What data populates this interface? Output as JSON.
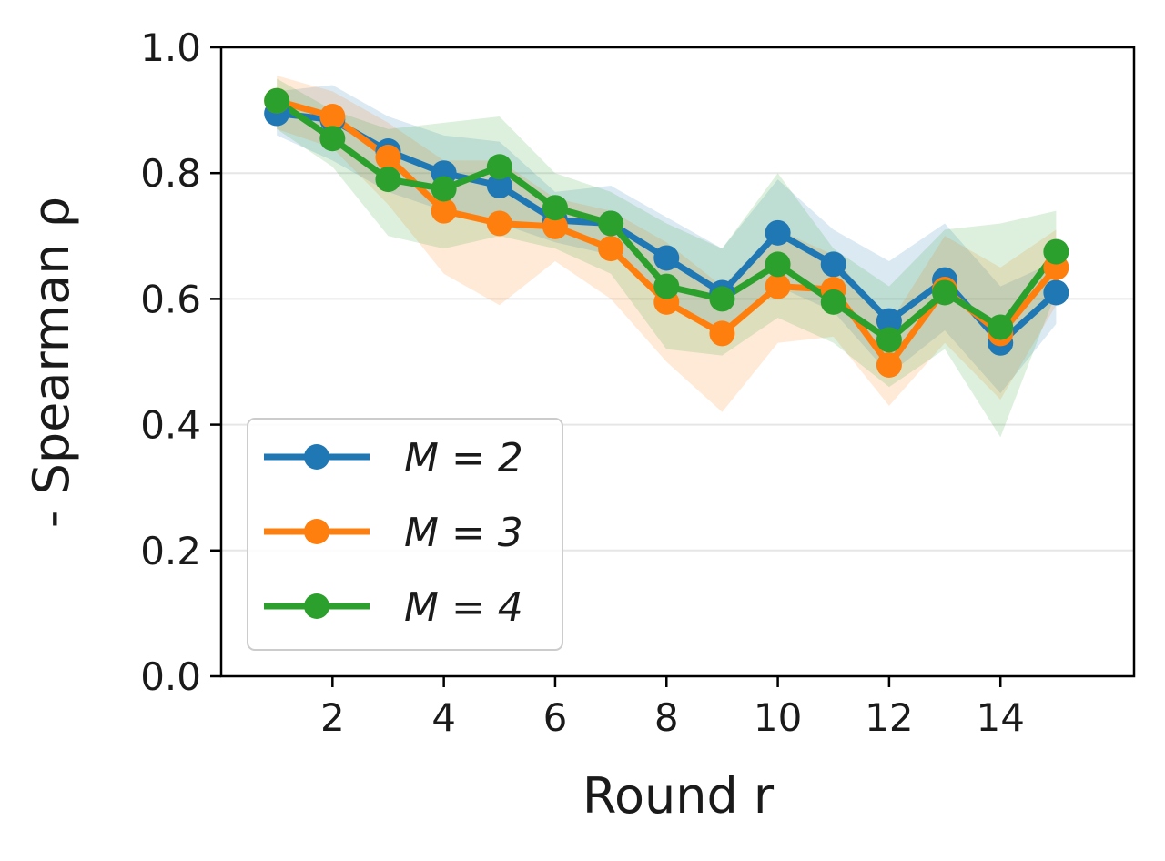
{
  "chart_data": {
    "type": "line",
    "title": "",
    "xlabel": "Round r",
    "ylabel": "- Spearman ρ",
    "x": [
      1,
      2,
      3,
      4,
      5,
      6,
      7,
      8,
      9,
      10,
      11,
      12,
      13,
      14,
      15
    ],
    "xticks": [
      2,
      4,
      6,
      8,
      10,
      12,
      14
    ],
    "xtick_labels": [
      "2",
      "4",
      "6",
      "8",
      "10",
      "12",
      "14"
    ],
    "xlim": [
      0.0,
      16.4
    ],
    "yticks": [
      0.0,
      0.2,
      0.4,
      0.6,
      0.8,
      1.0
    ],
    "ytick_labels": [
      "0.0",
      "0.2",
      "0.4",
      "0.6",
      "0.8",
      "1.0"
    ],
    "ylim": [
      0.0,
      1.0
    ],
    "grid": "horizontal",
    "legend_position": "lower-left",
    "series": [
      {
        "name": "M = 2",
        "color": "#1f77b4",
        "values": [
          0.895,
          0.885,
          0.835,
          0.8,
          0.78,
          0.725,
          0.72,
          0.665,
          0.61,
          0.705,
          0.655,
          0.565,
          0.63,
          0.53,
          0.61
        ],
        "lower": [
          0.86,
          0.82,
          0.77,
          0.74,
          0.72,
          0.69,
          0.67,
          0.6,
          0.55,
          0.62,
          0.58,
          0.48,
          0.55,
          0.45,
          0.56
        ],
        "upper": [
          0.93,
          0.94,
          0.89,
          0.86,
          0.85,
          0.77,
          0.78,
          0.73,
          0.68,
          0.79,
          0.71,
          0.66,
          0.72,
          0.62,
          0.66
        ]
      },
      {
        "name": "M = 3",
        "color": "#ff7f0e",
        "values": [
          0.915,
          0.89,
          0.825,
          0.74,
          0.72,
          0.715,
          0.68,
          0.595,
          0.545,
          0.62,
          0.615,
          0.495,
          0.615,
          0.545,
          0.65
        ],
        "lower": [
          0.87,
          0.84,
          0.75,
          0.64,
          0.59,
          0.66,
          0.6,
          0.5,
          0.42,
          0.53,
          0.54,
          0.43,
          0.53,
          0.44,
          0.59
        ],
        "upper": [
          0.955,
          0.93,
          0.88,
          0.82,
          0.82,
          0.76,
          0.74,
          0.69,
          0.62,
          0.71,
          0.67,
          0.56,
          0.7,
          0.65,
          0.71
        ]
      },
      {
        "name": "M = 4",
        "color": "#2ca02c",
        "values": [
          0.915,
          0.855,
          0.79,
          0.775,
          0.81,
          0.745,
          0.72,
          0.62,
          0.6,
          0.655,
          0.595,
          0.535,
          0.61,
          0.555,
          0.675
        ],
        "lower": [
          0.87,
          0.81,
          0.7,
          0.68,
          0.7,
          0.68,
          0.64,
          0.52,
          0.51,
          0.57,
          0.53,
          0.46,
          0.52,
          0.38,
          0.61
        ],
        "upper": [
          0.95,
          0.9,
          0.87,
          0.88,
          0.89,
          0.8,
          0.77,
          0.72,
          0.68,
          0.8,
          0.68,
          0.62,
          0.71,
          0.72,
          0.74
        ]
      }
    ]
  }
}
